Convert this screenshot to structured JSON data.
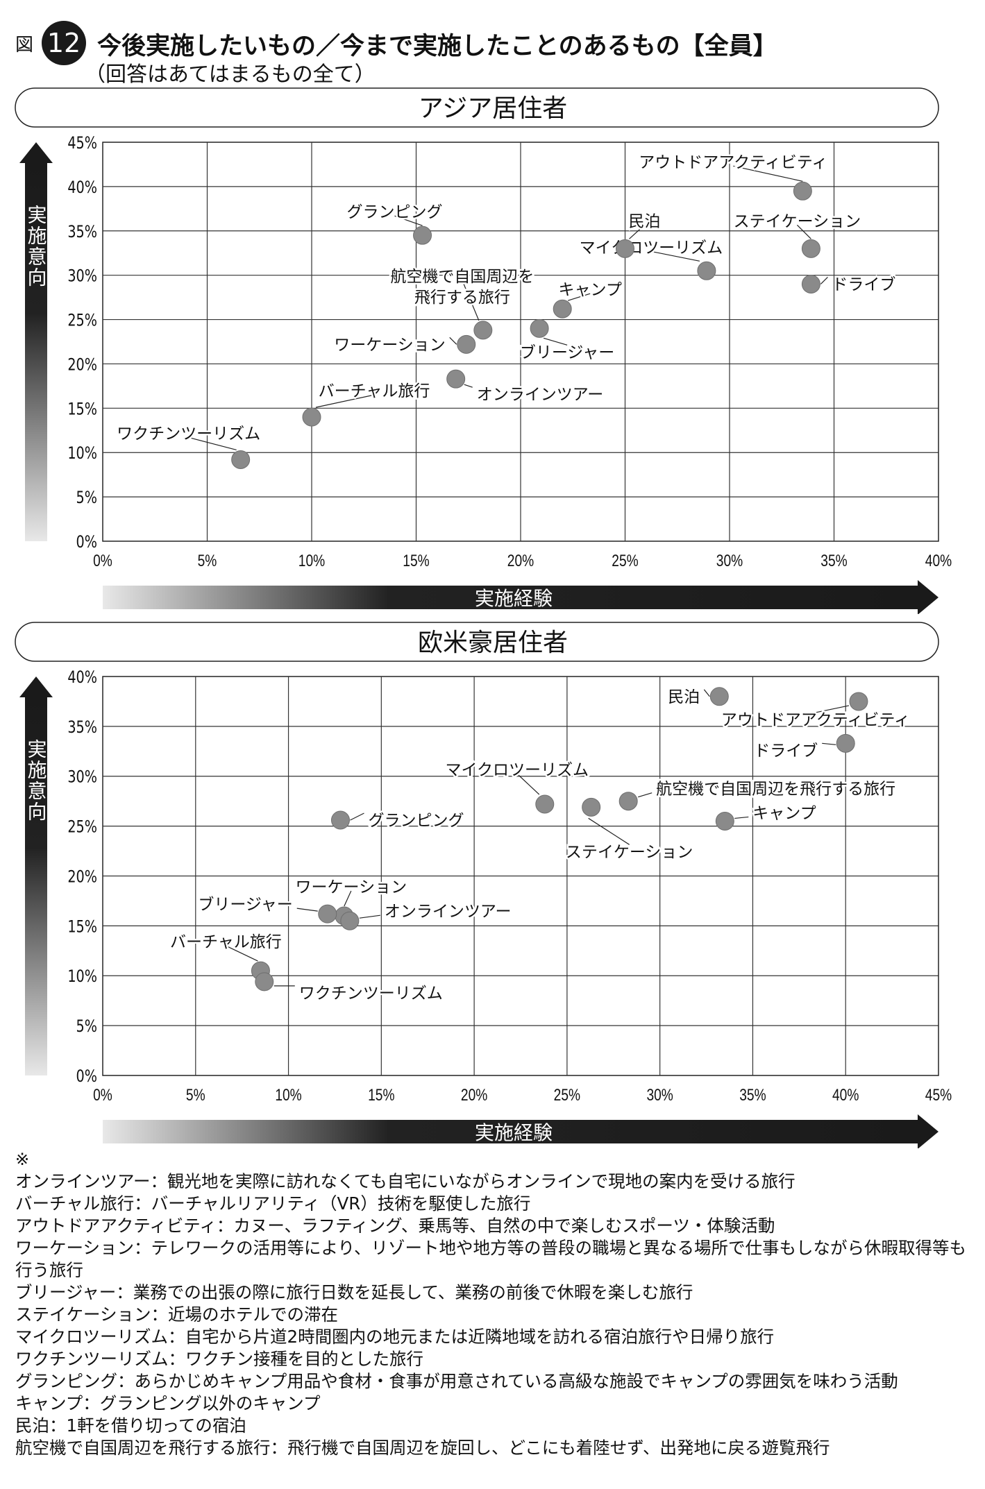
{
  "figure": {
    "prefix": "図",
    "number": "12",
    "title": "今後実施したいもの／今まで実施したことのあるもの【全員】",
    "subtitle": "（回答はあてはまるもの全て）"
  },
  "chart_data": [
    {
      "type": "scatter",
      "title": "アジア居住者",
      "xlabel": "実施経験",
      "ylabel": "実施意向",
      "xlim": [
        0,
        40
      ],
      "ylim": [
        0,
        45
      ],
      "xticks": [
        0,
        5,
        10,
        15,
        20,
        25,
        30,
        35,
        40
      ],
      "yticks": [
        0,
        5,
        10,
        15,
        20,
        25,
        30,
        35,
        40,
        45
      ],
      "tick_suffix": "%",
      "grid": true,
      "points": [
        {
          "label": "アウトドアアクティビティ",
          "x": 33.5,
          "y": 39.5
        },
        {
          "label": "ステイケーション",
          "x": 33.9,
          "y": 33.0
        },
        {
          "label": "ドライブ",
          "x": 33.9,
          "y": 29.0
        },
        {
          "label": "マイクロツーリズム",
          "x": 28.9,
          "y": 30.5
        },
        {
          "label": "民泊",
          "x": 25.0,
          "y": 33.0
        },
        {
          "label": "グランピング",
          "x": 15.3,
          "y": 34.5
        },
        {
          "label": "キャンプ",
          "x": 22.0,
          "y": 26.2
        },
        {
          "label": "ブリージャー",
          "x": 20.9,
          "y": 24.0
        },
        {
          "label": "航空機で自国周辺を\n飛行する旅行",
          "x": 18.2,
          "y": 23.8
        },
        {
          "label": "ワーケーション",
          "x": 17.4,
          "y": 22.2
        },
        {
          "label": "オンラインツアー",
          "x": 16.9,
          "y": 18.3
        },
        {
          "label": "バーチャル旅行",
          "x": 10.0,
          "y": 14.0
        },
        {
          "label": "ワクチンツーリズム",
          "x": 6.6,
          "y": 9.2
        }
      ]
    },
    {
      "type": "scatter",
      "title": "欧米豪居住者",
      "xlabel": "実施経験",
      "ylabel": "実施意向",
      "xlim": [
        0,
        45
      ],
      "ylim": [
        0,
        40
      ],
      "xticks": [
        0,
        5,
        10,
        15,
        20,
        25,
        30,
        35,
        40,
        45
      ],
      "yticks": [
        0,
        5,
        10,
        15,
        20,
        25,
        30,
        35,
        40
      ],
      "tick_suffix": "%",
      "grid": true,
      "points": [
        {
          "label": "民泊",
          "x": 33.2,
          "y": 38.0
        },
        {
          "label": "アウトドアアクティビティ",
          "x": 40.7,
          "y": 37.5
        },
        {
          "label": "ドライブ",
          "x": 40.0,
          "y": 33.3
        },
        {
          "label": "マイクロツーリズム",
          "x": 23.8,
          "y": 27.2
        },
        {
          "label": "ステイケーション",
          "x": 26.3,
          "y": 26.9
        },
        {
          "label": "航空機で自国周辺を飛行する旅行",
          "x": 28.3,
          "y": 27.5
        },
        {
          "label": "キャンプ",
          "x": 33.5,
          "y": 25.5
        },
        {
          "label": "グランピング",
          "x": 12.8,
          "y": 25.6
        },
        {
          "label": "ワーケーション",
          "x": 13.0,
          "y": 16.0
        },
        {
          "label": "ブリージャー",
          "x": 12.1,
          "y": 16.2
        },
        {
          "label": "オンラインツアー",
          "x": 13.3,
          "y": 15.5
        },
        {
          "label": "バーチャル旅行",
          "x": 8.5,
          "y": 10.5
        },
        {
          "label": "ワクチンツーリズム",
          "x": 8.7,
          "y": 9.4
        }
      ]
    }
  ],
  "notes": {
    "mark": "※",
    "items": [
      "オンラインツアー：観光地を実際に訪れなくても自宅にいながらオンラインで現地の案内を受ける旅行",
      "バーチャル旅行：バーチャルリアリティ（VR）技術を駆使した旅行",
      "アウトドアアクティビティ：カヌー、ラフティング、乗馬等、自然の中で楽しむスポーツ・体験活動",
      "ワーケーション：テレワークの活用等により、リゾート地や地方等の普段の職場と異なる場所で仕事もしながら休暇取得等も行う旅行",
      "ブリージャー：業務での出張の際に旅行日数を延長して、業務の前後で休暇を楽しむ旅行",
      "ステイケーション：近場のホテルでの滞在",
      "マイクロツーリズム：自宅から片道2時間圏内の地元または近隣地域を訪れる宿泊旅行や日帰り旅行",
      "ワクチンツーリズム：ワクチン接種を目的とした旅行",
      "グランピング：あらかじめキャンプ用品や食材・食事が用意されている高級な施設でキャンプの雰囲気を味わう活動",
      "キャンプ：グランピング以外のキャンプ",
      "民泊：1軒を借り切っての宿泊",
      "航空機で自国周辺を飛行する旅行：飛行機で自国周辺を旋回し、どこにも着陸せず、出発地に戻る遊覧飛行"
    ]
  }
}
